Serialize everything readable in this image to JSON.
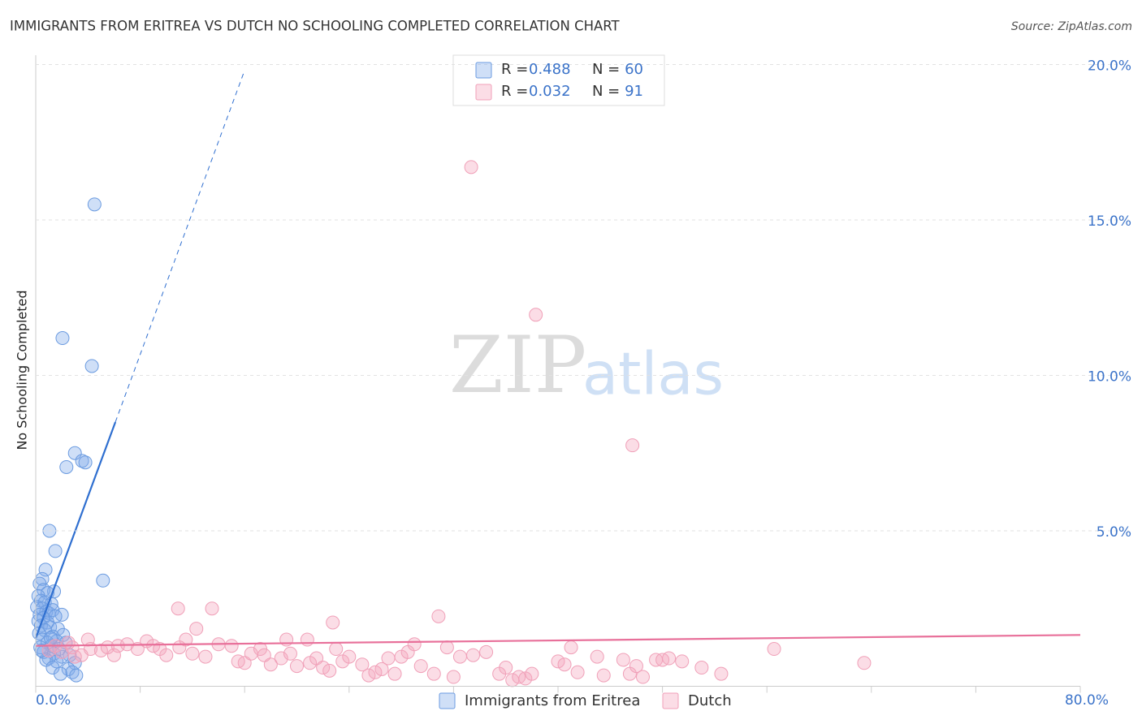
{
  "chart_data": {
    "type": "scatter",
    "title": "IMMIGRANTS FROM ERITREA VS DUTCH NO SCHOOLING COMPLETED CORRELATION CHART",
    "source": "Source: ZipAtlas.com",
    "y_label": "No Schooling Completed",
    "watermark": [
      "ZIP",
      "atlas"
    ],
    "stat_labels": [
      "R =",
      "N ="
    ],
    "xlim": [
      0,
      80
    ],
    "ylim": [
      0,
      20.3
    ],
    "xticks": [
      {
        "value": 0,
        "label": "0.0%"
      },
      {
        "value": 80,
        "label": "80.0%"
      }
    ],
    "xminorticks": [
      8,
      16,
      24,
      32,
      40,
      48,
      56,
      64,
      72
    ],
    "yticks": [
      {
        "value": 5,
        "label": "5.0%"
      },
      {
        "value": 10,
        "label": "10.0%"
      },
      {
        "value": 15,
        "label": "15.0%"
      },
      {
        "value": 20,
        "label": "20.0%"
      }
    ],
    "grid": true,
    "series": [
      {
        "name": "Immigrants from Eritrea",
        "color": "#6b9be0",
        "r": 0.488,
        "n": 60,
        "trend": {
          "x": [
            0,
            6.1
          ],
          "y": [
            1.55,
            8.5
          ]
        },
        "trend_extended": {
          "x": [
            6.1,
            15.9
          ],
          "y": [
            8.5,
            19.7
          ]
        },
        "x": [
          4.5,
          2.05,
          4.3,
          3.0,
          2.35,
          3.55,
          3.8,
          1.05,
          1.5,
          5.15,
          0.75,
          1.4,
          0.5,
          0.3,
          0.6,
          0.9,
          0.2,
          0.4,
          0.7,
          1.2,
          0.1,
          0.5,
          0.8,
          1.0,
          1.3,
          0.3,
          0.6,
          2.0,
          1.5,
          0.2,
          0.9,
          0.4,
          1.1,
          0.7,
          1.7,
          0.25,
          1.3,
          2.1,
          0.5,
          1.6,
          0.9,
          2.3,
          0.35,
          1.2,
          1.8,
          0.6,
          1.4,
          2.6,
          1.0,
          2.0,
          0.8,
          1.6,
          3.0,
          1.3,
          2.5,
          1.9,
          2.8,
          3.1,
          0.45,
          1.15
        ],
        "values": [
          15.5,
          11.2,
          10.3,
          7.5,
          7.05,
          7.25,
          7.2,
          5.0,
          4.35,
          3.4,
          3.75,
          3.05,
          3.45,
          3.3,
          3.1,
          3.0,
          2.9,
          2.75,
          2.7,
          2.65,
          2.55,
          2.5,
          2.4,
          2.35,
          2.45,
          2.3,
          2.2,
          2.3,
          2.25,
          2.1,
          2.05,
          1.95,
          1.9,
          1.8,
          1.85,
          1.7,
          1.6,
          1.65,
          1.5,
          1.45,
          1.4,
          1.4,
          1.25,
          1.3,
          1.2,
          1.1,
          1.05,
          1.0,
          0.9,
          0.95,
          0.85,
          0.8,
          0.75,
          0.6,
          0.55,
          0.4,
          0.45,
          0.35,
          1.15,
          1.55
        ]
      },
      {
        "name": "Dutch",
        "color": "#f0a0b8",
        "r": 0.032,
        "n": 91,
        "trend": {
          "x": [
            0,
            80
          ],
          "y": [
            1.3,
            1.65
          ]
        },
        "x": [
          33.35,
          38.3,
          45.7,
          30.85,
          22.75,
          10.9,
          13.5,
          12.3,
          56.55,
          63.45,
          1.5,
          2.0,
          2.8,
          3.5,
          4.2,
          5.0,
          5.5,
          6.3,
          7.0,
          7.8,
          8.5,
          9.0,
          9.5,
          10.0,
          11.5,
          11.0,
          12.0,
          13.0,
          14.0,
          15.0,
          16.0,
          16.5,
          17.2,
          18.0,
          18.8,
          19.5,
          20.0,
          21.0,
          19.2,
          20.8,
          21.5,
          22.0,
          22.5,
          23.5,
          24.0,
          25.0,
          25.5,
          26.0,
          26.5,
          27.0,
          27.5,
          28.0,
          28.5,
          29.0,
          29.5,
          30.5,
          31.5,
          32.0,
          32.5,
          33.5,
          34.5,
          35.5,
          36.0,
          36.5,
          37.0,
          37.5,
          38.0,
          40.0,
          40.5,
          41.0,
          41.5,
          43.0,
          43.5,
          45.0,
          45.5,
          46.0,
          46.5,
          47.5,
          48.0,
          48.5,
          49.5,
          51.0,
          52.5,
          1.0,
          2.5,
          3.0,
          4.0,
          6.0,
          15.5,
          17.5,
          23.0
        ],
        "values": [
          16.7,
          11.95,
          7.75,
          2.25,
          2.05,
          2.5,
          2.5,
          1.85,
          1.2,
          0.75,
          1.3,
          1.1,
          1.25,
          1.0,
          1.2,
          1.15,
          1.25,
          1.3,
          1.35,
          1.2,
          1.45,
          1.3,
          1.2,
          1.0,
          1.5,
          1.25,
          1.05,
          0.95,
          1.35,
          1.3,
          0.75,
          1.05,
          1.2,
          0.7,
          0.9,
          1.05,
          0.65,
          0.75,
          1.5,
          1.5,
          0.9,
          0.6,
          0.5,
          0.8,
          0.95,
          0.7,
          0.35,
          0.45,
          0.55,
          0.9,
          0.4,
          0.95,
          1.1,
          1.35,
          0.65,
          0.4,
          1.25,
          0.3,
          0.95,
          1.0,
          1.1,
          0.4,
          0.6,
          0.2,
          0.3,
          0.25,
          0.4,
          0.8,
          0.7,
          1.25,
          0.45,
          0.95,
          0.35,
          0.85,
          0.4,
          0.65,
          0.3,
          0.85,
          0.85,
          0.9,
          0.8,
          0.6,
          0.4,
          1.15,
          1.4,
          0.95,
          1.5,
          1.0,
          0.8,
          1.0,
          1.2
        ]
      }
    ]
  }
}
